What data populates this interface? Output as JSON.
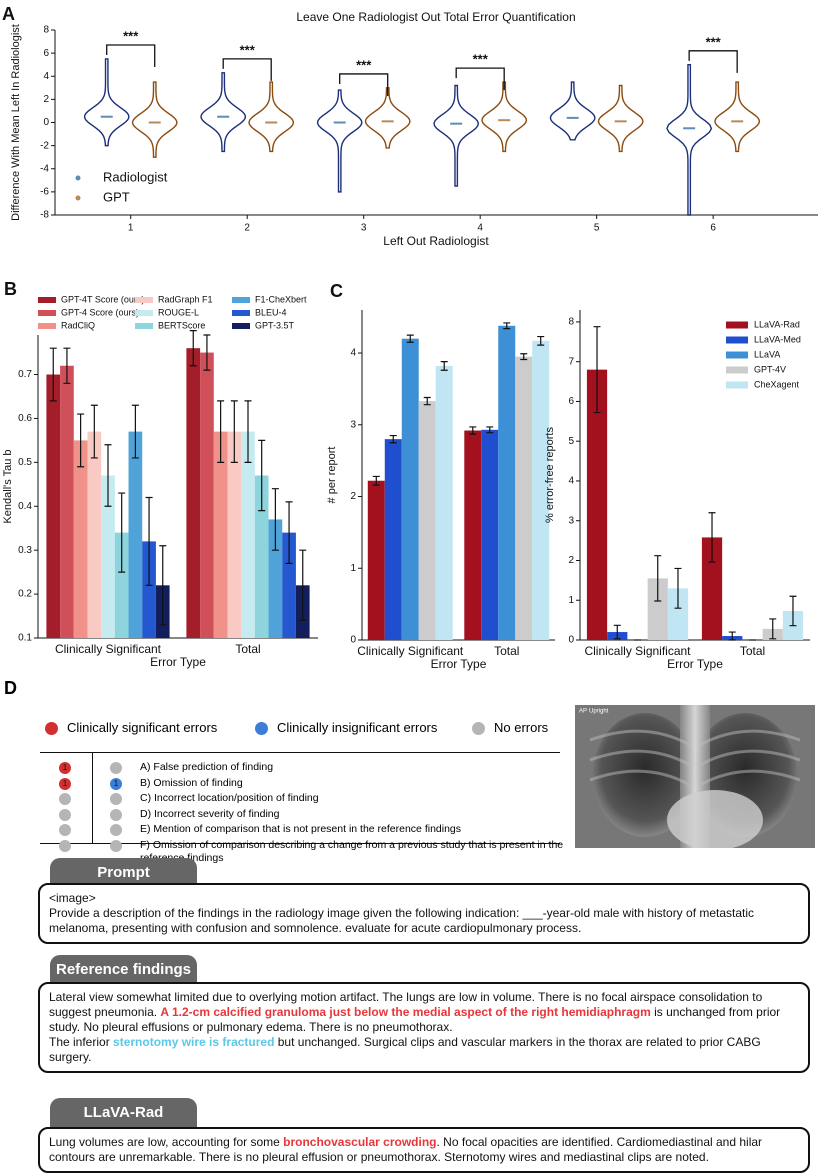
{
  "panel_labels": [
    "A",
    "B",
    "C",
    "D"
  ],
  "chart_data": [
    {
      "type": "violin",
      "title": "Leave One Radiologist Out Total Error Quantification",
      "xlabel": "Left Out Radiologist",
      "ylabel": "Difference With Mean Left In Radiologist",
      "x": [
        1,
        2,
        3,
        4,
        5,
        6
      ],
      "xlim": [
        0.35,
        6.9
      ],
      "xticks": [
        1,
        2,
        3,
        4,
        5,
        6
      ],
      "ylim": [
        -8,
        8
      ],
      "yticks": [
        -8,
        -6,
        -4,
        -2,
        0,
        2,
        4,
        6,
        8
      ],
      "legend": "lower left",
      "significance": [
        "***",
        "***",
        "***",
        "***",
        null,
        "***"
      ],
      "series": [
        {
          "name": "Radiologist",
          "color": "#5b8db8",
          "line_color": "#1c2f7a",
          "values": [
            0.5,
            0.5,
            0,
            -0.1,
            0.4,
            -0.5
          ],
          "min": [
            -2,
            -2.5,
            -6,
            -5.5,
            -1.5,
            -8
          ],
          "max": [
            5.5,
            4.3,
            2.8,
            3.2,
            3.5,
            5
          ]
        },
        {
          "name": "GPT",
          "color": "#b8895a",
          "line_color": "#8b4a0f",
          "values": [
            0,
            0,
            0.1,
            0.2,
            0.1,
            0.1
          ],
          "min": [
            -3,
            -2.5,
            -2.2,
            -2.5,
            -2.5,
            -2.5
          ],
          "max": [
            3.5,
            3.5,
            3,
            3.5,
            3.2,
            3.5
          ]
        }
      ]
    },
    {
      "type": "bar",
      "xlabel": "Error Type",
      "ylabel": "Kendall's Tau b",
      "categories": [
        "Clinically Significant",
        "Total"
      ],
      "ylim": [
        0.1,
        0.79
      ],
      "yticks": [
        0.1,
        0.2,
        0.3,
        0.4,
        0.5,
        0.6,
        0.7
      ],
      "legend": "top",
      "series": [
        {
          "name": "GPT-4T Score (ours)",
          "color": "#a31d2a",
          "values": [
            0.7,
            0.76
          ],
          "errors": [
            0.06,
            0.04
          ]
        },
        {
          "name": "GPT-4 Score (ours)",
          "color": "#d0505a",
          "values": [
            0.72,
            0.75
          ],
          "errors": [
            0.04,
            0.04
          ]
        },
        {
          "name": "RadCliQ",
          "color": "#f0918a",
          "values": [
            0.55,
            0.57
          ],
          "errors": [
            0.06,
            0.07
          ]
        },
        {
          "name": "RadGraph F1",
          "color": "#f9c9c3",
          "values": [
            0.57,
            0.57
          ],
          "errors": [
            0.06,
            0.07
          ]
        },
        {
          "name": "ROUGE-L",
          "color": "#c5eaf0",
          "values": [
            0.47,
            0.57
          ],
          "errors": [
            0.07,
            0.07
          ]
        },
        {
          "name": "BERTScore",
          "color": "#8dd4dd",
          "values": [
            0.34,
            0.47
          ],
          "errors": [
            0.09,
            0.08
          ]
        },
        {
          "name": "F1-CheXbert",
          "color": "#4fa3d8",
          "values": [
            0.57,
            0.37
          ],
          "errors": [
            0.06,
            0.07
          ]
        },
        {
          "name": "BLEU-4",
          "color": "#2458d0",
          "values": [
            0.32,
            0.34
          ],
          "errors": [
            0.1,
            0.07
          ]
        },
        {
          "name": "GPT-3.5T",
          "color": "#131f5c",
          "values": [
            0.22,
            0.22
          ],
          "errors": [
            0.09,
            0.08
          ]
        }
      ]
    },
    {
      "type": "bar",
      "xlabel": "Error Type",
      "ylabel": "# per report",
      "categories": [
        "Clinically Significant",
        "Total"
      ],
      "ylim": [
        0,
        4.6
      ],
      "yticks": [
        0,
        1,
        2,
        3,
        4
      ],
      "series": [
        {
          "name": "LLaVA-Rad",
          "color": "#a3111f",
          "values": [
            2.22,
            2.92
          ],
          "errors": [
            0.06,
            0.05
          ]
        },
        {
          "name": "LLaVA-Med",
          "color": "#1f4fcf",
          "values": [
            2.8,
            2.93
          ],
          "errors": [
            0.05,
            0.04
          ]
        },
        {
          "name": "LLaVA",
          "color": "#3d8fd6",
          "values": [
            4.2,
            4.38
          ],
          "errors": [
            0.05,
            0.04
          ]
        },
        {
          "name": "GPT-4V",
          "color": "#cccccc",
          "values": [
            3.33,
            3.95
          ],
          "errors": [
            0.05,
            0.04
          ]
        },
        {
          "name": "CheXagent",
          "color": "#bfe6f2",
          "values": [
            3.82,
            4.17
          ],
          "errors": [
            0.06,
            0.06
          ]
        }
      ]
    },
    {
      "type": "bar",
      "xlabel": "Error Type",
      "ylabel": "% error-free reports",
      "categories": [
        "Clinically Significant",
        "Total"
      ],
      "ylim": [
        0,
        8.3
      ],
      "yticks": [
        0,
        1,
        2,
        3,
        4,
        5,
        6,
        7,
        8
      ],
      "legend": "upper right",
      "series": [
        {
          "name": "LLaVA-Rad",
          "color": "#a3111f",
          "values": [
            6.8,
            2.58
          ],
          "errors": [
            1.08,
            0.62
          ]
        },
        {
          "name": "LLaVA-Med",
          "color": "#1f4fcf",
          "values": [
            0.2,
            0.1
          ],
          "errors": [
            0.17,
            0.1
          ]
        },
        {
          "name": "LLaVA",
          "color": "#3d8fd6",
          "values": [
            0,
            0
          ],
          "errors": [
            0,
            0
          ]
        },
        {
          "name": "GPT-4V",
          "color": "#cccccc",
          "values": [
            1.55,
            0.28
          ],
          "errors": [
            0.57,
            0.25
          ]
        },
        {
          "name": "CheXagent",
          "color": "#bfe6f2",
          "values": [
            1.3,
            0.73
          ],
          "errors": [
            0.5,
            0.37
          ]
        }
      ]
    }
  ],
  "panel_d": {
    "legend": [
      {
        "label": "Clinically significant errors",
        "color": "#d32f2f"
      },
      {
        "label": "Clinically insignificant errors",
        "color": "#3b7dd8"
      },
      {
        "label": "No errors",
        "color": "#b5b5b5"
      }
    ],
    "error_table": [
      {
        "label": "A) False prediction of finding",
        "significant": 1,
        "insignificant": null
      },
      {
        "label": "B) Omission of finding",
        "significant": 1,
        "insignificant": 1
      },
      {
        "label": "C) Incorrect location/position of finding",
        "significant": null,
        "insignificant": null
      },
      {
        "label": "D) Incorrect severity of finding",
        "significant": null,
        "insignificant": null
      },
      {
        "label": "E) Mention of comparison that is not present in the reference findings",
        "significant": null,
        "insignificant": null
      },
      {
        "label": "F) Omission of comparison describing a change from a previous study that is present in the reference findings",
        "significant": null,
        "insignificant": null
      }
    ],
    "image_labels": [
      "AP",
      "Upright"
    ],
    "highlight_colors": {
      "significant": "#e8363a",
      "insignificant": "#5bc8e8"
    },
    "boxes": [
      {
        "title": "Prompt",
        "paragraphs": [
          [
            {
              "text": "<image>",
              "highlight": null
            }
          ],
          [
            {
              "text": "Provide a description of the findings in the radiology image given the following indication: ___-year-old male with history of metastatic melanoma, presenting  with confusion and somnolence.  evaluate for acute cardiopulmonary process.",
              "highlight": null
            }
          ]
        ]
      },
      {
        "title": "Reference findings",
        "paragraphs": [
          [
            {
              "text": "Lateral view somewhat limited due to overlying motion artifact. The lungs are low in volume.  There is no focal airspace consolidation to suggest pneumonia.  ",
              "highlight": null
            },
            {
              "text": "A 1.2-cm calcified granuloma just below the medial aspect of the right hemidiaphragm",
              "highlight": "significant"
            },
            {
              "text": " is unchanged from prior study.  No pleural effusions or pulmonary edema. There is no pneumothorax.",
              "highlight": null
            }
          ],
          [
            {
              "text": "The inferior ",
              "highlight": null
            },
            {
              "text": "sternotomy wire is fractured",
              "highlight": "insignificant"
            },
            {
              "text": " but unchanged. Surgical clips and vascular markers in the thorax are related to prior CABG surgery.",
              "highlight": null
            }
          ]
        ]
      },
      {
        "title": "LLaVA-Rad",
        "paragraphs": [
          [
            {
              "text": "Lung volumes are low, accounting for some ",
              "highlight": null
            },
            {
              "text": "bronchovascular crowding",
              "highlight": "significant"
            },
            {
              "text": ". No focal opacities are identified.  Cardiomediastinal and hilar contours are unremarkable.  There is no pleural effusion or pneumothorax.  Sternotomy wires and mediastinal clips are noted.",
              "highlight": null
            }
          ]
        ]
      }
    ]
  }
}
